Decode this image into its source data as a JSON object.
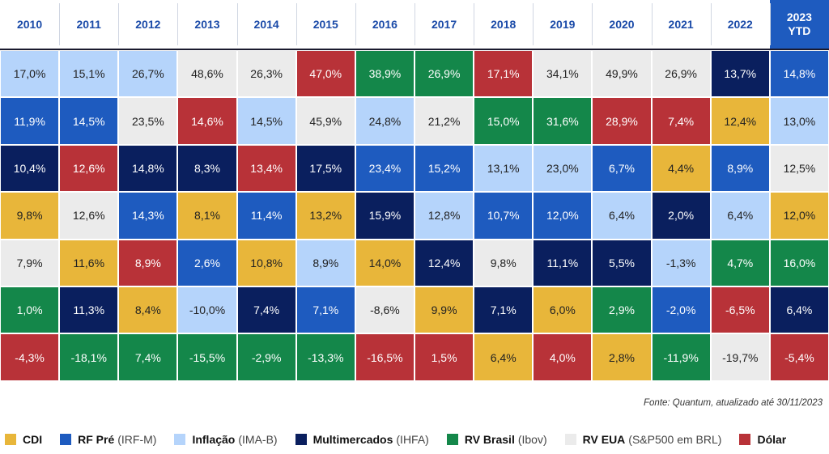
{
  "chart_data": {
    "type": "table",
    "years": [
      "2010",
      "2011",
      "2012",
      "2013",
      "2014",
      "2015",
      "2016",
      "2017",
      "2018",
      "2019",
      "2020",
      "2021",
      "2022",
      "2023\nYTD"
    ],
    "colors": {
      "cdi": "#e8b63a",
      "rfpre": "#1e5bbf",
      "inflacao": "#b5d4fb",
      "multimercados": "#0a1f5e",
      "rvbrasil": "#14874a",
      "rveua": "#ebebeb",
      "dolar": "#b83238"
    },
    "columns": [
      [
        [
          "17,0%",
          "inflacao"
        ],
        [
          "11,9%",
          "rfpre"
        ],
        [
          "10,4%",
          "multimercados"
        ],
        [
          "9,8%",
          "cdi"
        ],
        [
          "7,9%",
          "rveua"
        ],
        [
          "1,0%",
          "rvbrasil"
        ],
        [
          "-4,3%",
          "dolar"
        ]
      ],
      [
        [
          "15,1%",
          "inflacao"
        ],
        [
          "14,5%",
          "rfpre"
        ],
        [
          "12,6%",
          "dolar"
        ],
        [
          "12,6%",
          "rveua"
        ],
        [
          "11,6%",
          "cdi"
        ],
        [
          "11,3%",
          "multimercados"
        ],
        [
          "-18,1%",
          "rvbrasil"
        ]
      ],
      [
        [
          "26,7%",
          "inflacao"
        ],
        [
          "23,5%",
          "rveua"
        ],
        [
          "14,8%",
          "multimercados"
        ],
        [
          "14,3%",
          "rfpre"
        ],
        [
          "8,9%",
          "dolar"
        ],
        [
          "8,4%",
          "cdi"
        ],
        [
          "7,4%",
          "rvbrasil"
        ]
      ],
      [
        [
          "48,6%",
          "rveua"
        ],
        [
          "14,6%",
          "dolar"
        ],
        [
          "8,3%",
          "multimercados"
        ],
        [
          "8,1%",
          "cdi"
        ],
        [
          "2,6%",
          "rfpre"
        ],
        [
          "-10,0%",
          "inflacao"
        ],
        [
          "-15,5%",
          "rvbrasil"
        ]
      ],
      [
        [
          "26,3%",
          "rveua"
        ],
        [
          "14,5%",
          "inflacao"
        ],
        [
          "13,4%",
          "dolar"
        ],
        [
          "11,4%",
          "rfpre"
        ],
        [
          "10,8%",
          "cdi"
        ],
        [
          "7,4%",
          "multimercados"
        ],
        [
          "-2,9%",
          "rvbrasil"
        ]
      ],
      [
        [
          "47,0%",
          "dolar"
        ],
        [
          "45,9%",
          "rveua"
        ],
        [
          "17,5%",
          "multimercados"
        ],
        [
          "13,2%",
          "cdi"
        ],
        [
          "8,9%",
          "inflacao"
        ],
        [
          "7,1%",
          "rfpre"
        ],
        [
          "-13,3%",
          "rvbrasil"
        ]
      ],
      [
        [
          "38,9%",
          "rvbrasil"
        ],
        [
          "24,8%",
          "inflacao"
        ],
        [
          "23,4%",
          "rfpre"
        ],
        [
          "15,9%",
          "multimercados"
        ],
        [
          "14,0%",
          "cdi"
        ],
        [
          "-8,6%",
          "rveua"
        ],
        [
          "-16,5%",
          "dolar"
        ]
      ],
      [
        [
          "26,9%",
          "rvbrasil"
        ],
        [
          "21,2%",
          "rveua"
        ],
        [
          "15,2%",
          "rfpre"
        ],
        [
          "12,8%",
          "inflacao"
        ],
        [
          "12,4%",
          "multimercados"
        ],
        [
          "9,9%",
          "cdi"
        ],
        [
          "1,5%",
          "dolar"
        ]
      ],
      [
        [
          "17,1%",
          "dolar"
        ],
        [
          "15,0%",
          "rvbrasil"
        ],
        [
          "13,1%",
          "inflacao"
        ],
        [
          "10,7%",
          "rfpre"
        ],
        [
          "9,8%",
          "rveua"
        ],
        [
          "7,1%",
          "multimercados"
        ],
        [
          "6,4%",
          "cdi"
        ]
      ],
      [
        [
          "34,1%",
          "rveua"
        ],
        [
          "31,6%",
          "rvbrasil"
        ],
        [
          "23,0%",
          "inflacao"
        ],
        [
          "12,0%",
          "rfpre"
        ],
        [
          "11,1%",
          "multimercados"
        ],
        [
          "6,0%",
          "cdi"
        ],
        [
          "4,0%",
          "dolar"
        ]
      ],
      [
        [
          "49,9%",
          "rveua"
        ],
        [
          "28,9%",
          "dolar"
        ],
        [
          "6,7%",
          "rfpre"
        ],
        [
          "6,4%",
          "inflacao"
        ],
        [
          "5,5%",
          "multimercados"
        ],
        [
          "2,9%",
          "rvbrasil"
        ],
        [
          "2,8%",
          "cdi"
        ]
      ],
      [
        [
          "26,9%",
          "rveua"
        ],
        [
          "7,4%",
          "dolar"
        ],
        [
          "4,4%",
          "cdi"
        ],
        [
          "2,0%",
          "multimercados"
        ],
        [
          "-1,3%",
          "inflacao"
        ],
        [
          "-2,0%",
          "rfpre"
        ],
        [
          "-11,9%",
          "rvbrasil"
        ]
      ],
      [
        [
          "13,7%",
          "multimercados"
        ],
        [
          "12,4%",
          "cdi"
        ],
        [
          "8,9%",
          "rfpre"
        ],
        [
          "6,4%",
          "inflacao"
        ],
        [
          "4,7%",
          "rvbrasil"
        ],
        [
          "-6,5%",
          "dolar"
        ],
        [
          "-19,7%",
          "rveua"
        ]
      ],
      [
        [
          "14,8%",
          "rfpre"
        ],
        [
          "13,0%",
          "inflacao"
        ],
        [
          "12,5%",
          "rveua"
        ],
        [
          "12,0%",
          "cdi"
        ],
        [
          "16,0%",
          "rvbrasil"
        ],
        [
          "6,4%",
          "multimercados"
        ],
        [
          "-5,4%",
          "dolar"
        ]
      ]
    ]
  },
  "source": "Fonte: Quantum, atualizado até 30/11/2023",
  "legend": [
    {
      "key": "cdi",
      "name": "CDI",
      "detail": ""
    },
    {
      "key": "rfpre",
      "name": "RF Pré",
      "detail": "(IRF-M)"
    },
    {
      "key": "inflacao",
      "name": "Inflação",
      "detail": "(IMA-B)"
    },
    {
      "key": "multimercados",
      "name": "Multimercados",
      "detail": "(IHFA)"
    },
    {
      "key": "rvbrasil",
      "name": "RV Brasil",
      "detail": "(Ibov)"
    },
    {
      "key": "rveua",
      "name": "RV EUA",
      "detail": "(S&P500 em BRL)"
    },
    {
      "key": "dolar",
      "name": "Dólar",
      "detail": ""
    }
  ]
}
